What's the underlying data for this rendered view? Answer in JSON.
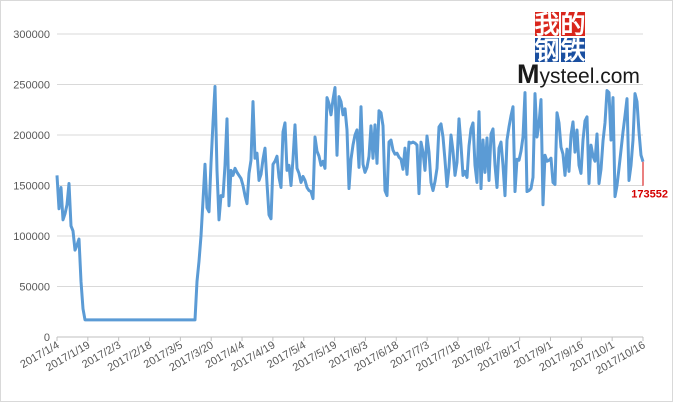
{
  "chart_data": {
    "type": "line",
    "title": "",
    "xlabel": "",
    "ylabel": "",
    "ylim": [
      0,
      300000
    ],
    "yticks": [
      0,
      50000,
      100000,
      150000,
      200000,
      250000,
      300000
    ],
    "yticklabels": [
      "0",
      "50000",
      "100000",
      "150000",
      "200000",
      "250000",
      "300000"
    ],
    "xticklabels": [
      "2017/1/4",
      "2017/1/19",
      "2017/2/3",
      "2017/2/18",
      "2017/3/5",
      "2017/3/20",
      "2017/4/4",
      "2017/4/19",
      "2017/5/4",
      "2017/5/19",
      "2017/6/3",
      "2017/6/18",
      "2017/7/3",
      "2017/7/18",
      "2017/8/2",
      "2017/8/17",
      "2017/9/1",
      "2017/9/16",
      "2017/10/1",
      "2017/10/16"
    ],
    "grid": true,
    "legend": "none",
    "line_color": "#5b9bd5",
    "series": [
      {
        "values": [
          160000,
          127000,
          148000,
          116000,
          122000,
          131000,
          152000,
          110000,
          105000,
          86000,
          91000,
          97000,
          55000,
          28000,
          17000,
          17000,
          17000,
          17000,
          17000,
          17000,
          17000,
          17000,
          17000,
          17000,
          17000,
          17000,
          17000,
          17000,
          17000,
          17000,
          17000,
          17000,
          17000,
          17000,
          17000,
          17000,
          17000,
          17000,
          17000,
          17000,
          17000,
          17000,
          17000,
          17000,
          17000,
          17000,
          17000,
          17000,
          17000,
          17000,
          17000,
          17000,
          17000,
          17000,
          17000,
          17000,
          17000,
          17000,
          17000,
          17000,
          17000,
          17000,
          17000,
          17000,
          17000,
          17000,
          17000,
          17000,
          17000,
          17000,
          55000,
          75000,
          100000,
          135000,
          171000,
          128000,
          124000,
          172000,
          212000,
          248000,
          165000,
          116000,
          140000,
          139000,
          170000,
          216000,
          130000,
          165000,
          160000,
          167000,
          163000,
          160000,
          157000,
          150000,
          140000,
          132000,
          162000,
          175000,
          233000,
          177000,
          182000,
          155000,
          161000,
          176000,
          187000,
          152000,
          121000,
          117000,
          171000,
          174000,
          179000,
          158000,
          148000,
          203000,
          212000,
          165000,
          170000,
          150000,
          176000,
          210000,
          167000,
          162000,
          153000,
          159000,
          155000,
          148000,
          145000,
          144000,
          137000,
          198000,
          184000,
          179000,
          170000,
          174000,
          167000,
          237000,
          231000,
          220000,
          235000,
          247000,
          180000,
          238000,
          233000,
          220000,
          226000,
          205000,
          147000,
          176000,
          190000,
          200000,
          205000,
          168000,
          228000,
          171000,
          163000,
          168000,
          179000,
          209000,
          177000,
          210000,
          172000,
          224000,
          222000,
          209000,
          145000,
          140000,
          193000,
          195000,
          185000,
          181000,
          182000,
          178000,
          176000,
          166000,
          187000,
          161000,
          193000,
          192000,
          193000,
          192000,
          190000,
          142000,
          193000,
          183000,
          165000,
          199000,
          183000,
          153000,
          145000,
          154000,
          167000,
          208000,
          211000,
          198000,
          175000,
          149000,
          168000,
          200000,
          184000,
          160000,
          173000,
          216000,
          190000,
          160000,
          164000,
          158000,
          189000,
          206000,
          212000,
          170000,
          153000,
          223000,
          147000,
          195000,
          163000,
          197000,
          155000,
          201000,
          206000,
          170000,
          148000,
          187000,
          193000,
          170000,
          140000,
          195000,
          208000,
          219000,
          228000,
          144000,
          176000,
          175000,
          184000,
          198000,
          242000,
          144000,
          145000,
          147000,
          158000,
          241000,
          198000,
          211000,
          235000,
          131000,
          180000,
          174000,
          175000,
          177000,
          153000,
          151000,
          222000,
          212000,
          188000,
          181000,
          160000,
          186000,
          164000,
          200000,
          213000,
          183000,
          205000,
          170000,
          162000,
          195000,
          214000,
          218000,
          152000,
          190000,
          179000,
          174000,
          201000,
          152000,
          166000,
          194000,
          212000,
          244000,
          242000,
          195000,
          237000,
          139000,
          150000,
          167000,
          185000,
          203000,
          219000,
          236000,
          155000,
          170000,
          195000,
          241000,
          233000,
          203000,
          180000,
          173552
        ]
      }
    ],
    "annotation": "173552"
  },
  "logo": {
    "cn_chars": [
      "我",
      "的",
      "钢",
      "铁"
    ],
    "en_first": "M",
    "en_rest": "ysteel.com",
    "box_colors": [
      "#d9261c",
      "#d9261c",
      "#1a4fa0",
      "#1a4fa0"
    ]
  }
}
